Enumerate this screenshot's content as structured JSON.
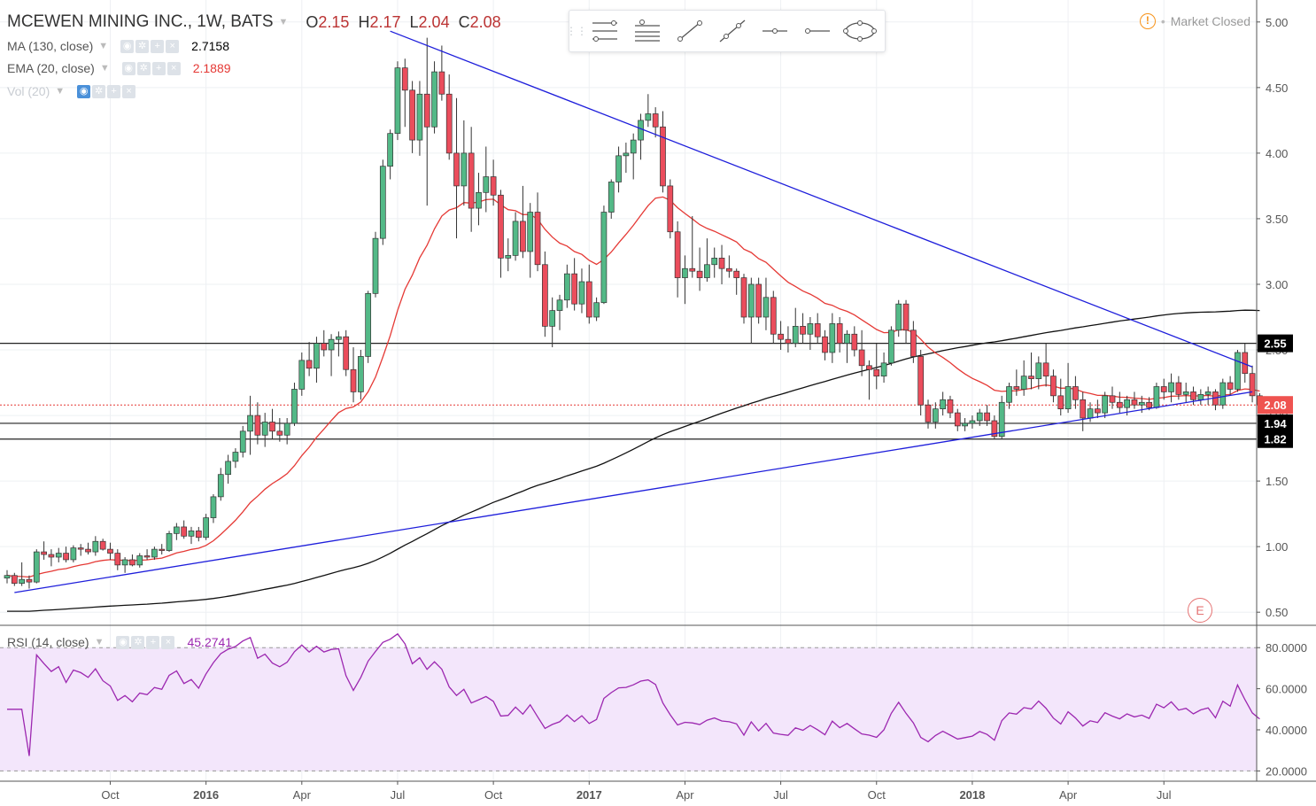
{
  "header": {
    "symbol_title": "MCEWEN MINING INC., 1W, BATS",
    "ohlc": [
      {
        "label": "O",
        "value": "2.15"
      },
      {
        "label": "H",
        "value": "2.17"
      },
      {
        "label": "L",
        "value": "2.04"
      },
      {
        "label": "C",
        "value": "2.08"
      }
    ]
  },
  "indicators": {
    "ma": {
      "label": "MA (130, close)",
      "value": "2.7158",
      "color": "#000000"
    },
    "ema": {
      "label": "EMA (20, close)",
      "value": "2.1889",
      "color": "#e53935"
    },
    "vol": {
      "label": "Vol (20)"
    },
    "rsi": {
      "label": "RSI (14, close)",
      "value": "45.2741",
      "color": "#9c27b0"
    }
  },
  "market_status": "Market Closed",
  "earnings_marker": "E",
  "toolbar": {
    "tools": [
      "parallel-lines-icon",
      "channel-icon",
      "trend-line-icon",
      "ray-line-icon",
      "horizontal-ray-icon",
      "horizontal-line-icon",
      "ellipse-icon"
    ]
  },
  "chart_data": [
    {
      "type": "candlestick",
      "title": "MCEWEN MINING INC., 1W, BATS",
      "ylim": [
        0.4,
        5.1
      ],
      "y_ticks": [
        "5.00",
        "4.50",
        "4.00",
        "3.50",
        "3.00",
        "2.50",
        "2.00",
        "1.50",
        "1.00",
        "0.50"
      ],
      "x_tick_labels": [
        "Oct",
        "2016",
        "Apr",
        "Jul",
        "Oct",
        "2017",
        "Apr",
        "Jul",
        "Oct",
        "2018",
        "Apr",
        "Jul"
      ],
      "x_tick_weeks": [
        14,
        27,
        40,
        53,
        66,
        79,
        92,
        105,
        118,
        131,
        144,
        157
      ],
      "weeks_total": 169,
      "price_labels": [
        {
          "value": 2.55,
          "text": "2.55",
          "style": "black"
        },
        {
          "value": 2.08,
          "text": "2.08",
          "style": "red"
        },
        {
          "value": 1.94,
          "text": "1.94",
          "style": "black"
        },
        {
          "value": 1.82,
          "text": "1.82",
          "style": "black"
        }
      ],
      "horizontal_lines": [
        2.55,
        1.94,
        1.82
      ],
      "last_price_line": 2.08,
      "trend_lines": [
        {
          "from": [
            1,
            0.65
          ],
          "to": [
            169,
            2.18
          ],
          "color": "#1e1edb"
        },
        {
          "from": [
            52,
            4.93
          ],
          "to": [
            169,
            2.37
          ],
          "color": "#1e1edb"
        }
      ],
      "ohlc": [
        [
          0.76,
          0.82,
          0.72,
          0.78
        ],
        [
          0.78,
          0.8,
          0.7,
          0.72
        ],
        [
          0.72,
          0.88,
          0.7,
          0.75
        ],
        [
          0.75,
          0.78,
          0.68,
          0.73
        ],
        [
          0.73,
          0.98,
          0.72,
          0.96
        ],
        [
          0.96,
          1.04,
          0.9,
          0.94
        ],
        [
          0.94,
          0.98,
          0.85,
          0.92
        ],
        [
          0.92,
          0.99,
          0.88,
          0.95
        ],
        [
          0.95,
          1.0,
          0.88,
          0.9
        ],
        [
          0.9,
          1.01,
          0.88,
          0.99
        ],
        [
          0.99,
          1.02,
          0.93,
          0.98
        ],
        [
          0.98,
          1.03,
          0.94,
          0.96
        ],
        [
          0.96,
          1.08,
          0.93,
          1.04
        ],
        [
          1.04,
          1.06,
          0.97,
          0.98
        ],
        [
          0.98,
          1.03,
          0.9,
          0.95
        ],
        [
          0.95,
          0.98,
          0.82,
          0.86
        ],
        [
          0.86,
          0.92,
          0.8,
          0.9
        ],
        [
          0.9,
          0.94,
          0.85,
          0.86
        ],
        [
          0.86,
          0.95,
          0.84,
          0.93
        ],
        [
          0.93,
          0.98,
          0.9,
          0.92
        ],
        [
          0.92,
          1.0,
          0.9,
          0.98
        ],
        [
          0.98,
          1.02,
          0.94,
          0.97
        ],
        [
          0.97,
          1.12,
          0.96,
          1.1
        ],
        [
          1.1,
          1.18,
          1.05,
          1.15
        ],
        [
          1.15,
          1.2,
          1.06,
          1.08
        ],
        [
          1.08,
          1.15,
          1.02,
          1.12
        ],
        [
          1.12,
          1.15,
          1.04,
          1.07
        ],
        [
          1.07,
          1.25,
          1.05,
          1.22
        ],
        [
          1.22,
          1.4,
          1.18,
          1.38
        ],
        [
          1.38,
          1.6,
          1.35,
          1.55
        ],
        [
          1.55,
          1.7,
          1.48,
          1.65
        ],
        [
          1.65,
          1.75,
          1.6,
          1.72
        ],
        [
          1.72,
          1.92,
          1.68,
          1.88
        ],
        [
          1.88,
          2.15,
          1.7,
          2.0
        ],
        [
          2.0,
          2.1,
          1.78,
          1.85
        ],
        [
          1.85,
          2.02,
          1.76,
          1.95
        ],
        [
          1.95,
          2.05,
          1.82,
          1.88
        ],
        [
          1.88,
          1.98,
          1.8,
          1.85
        ],
        [
          1.85,
          1.98,
          1.78,
          1.94
        ],
        [
          1.94,
          2.25,
          1.92,
          2.2
        ],
        [
          2.2,
          2.48,
          2.15,
          2.42
        ],
        [
          2.42,
          2.56,
          2.3,
          2.36
        ],
        [
          2.36,
          2.6,
          2.25,
          2.55
        ],
        [
          2.55,
          2.65,
          2.45,
          2.5
        ],
        [
          2.5,
          2.62,
          2.3,
          2.58
        ],
        [
          2.58,
          2.64,
          2.45,
          2.6
        ],
        [
          2.6,
          2.65,
          2.3,
          2.35
        ],
        [
          2.35,
          2.52,
          2.1,
          2.18
        ],
        [
          2.18,
          2.5,
          2.12,
          2.45
        ],
        [
          2.45,
          2.95,
          2.4,
          2.93
        ],
        [
          2.93,
          3.4,
          2.9,
          3.35
        ],
        [
          3.35,
          3.95,
          3.3,
          3.9
        ],
        [
          3.9,
          4.18,
          3.8,
          4.15
        ],
        [
          4.15,
          4.7,
          4.1,
          4.65
        ],
        [
          4.65,
          4.72,
          4.2,
          4.48
        ],
        [
          4.48,
          4.55,
          4.0,
          4.1
        ],
        [
          4.1,
          4.55,
          3.98,
          4.45
        ],
        [
          4.45,
          4.88,
          3.6,
          4.2
        ],
        [
          4.2,
          4.7,
          4.15,
          4.62
        ],
        [
          4.62,
          4.82,
          4.4,
          4.45
        ],
        [
          4.45,
          4.6,
          3.95,
          4.0
        ],
        [
          4.0,
          4.42,
          3.35,
          3.75
        ],
        [
          3.75,
          4.25,
          3.6,
          4.0
        ],
        [
          4.0,
          4.2,
          3.4,
          3.58
        ],
        [
          3.58,
          3.85,
          3.45,
          3.7
        ],
        [
          3.7,
          4.05,
          3.55,
          3.82
        ],
        [
          3.82,
          3.95,
          3.6,
          3.68
        ],
        [
          3.68,
          3.72,
          3.05,
          3.2
        ],
        [
          3.2,
          3.35,
          3.1,
          3.22
        ],
        [
          3.22,
          3.55,
          3.18,
          3.48
        ],
        [
          3.48,
          3.75,
          3.2,
          3.25
        ],
        [
          3.25,
          3.62,
          3.05,
          3.55
        ],
        [
          3.55,
          3.7,
          3.1,
          3.15
        ],
        [
          3.15,
          3.25,
          2.6,
          2.68
        ],
        [
          2.68,
          2.9,
          2.52,
          2.8
        ],
        [
          2.8,
          2.92,
          2.65,
          2.88
        ],
        [
          2.88,
          3.15,
          2.82,
          3.08
        ],
        [
          3.08,
          3.2,
          2.8,
          2.85
        ],
        [
          2.85,
          3.12,
          2.78,
          3.02
        ],
        [
          3.02,
          3.15,
          2.7,
          2.75
        ],
        [
          2.75,
          2.9,
          2.72,
          2.86
        ],
        [
          2.86,
          3.6,
          2.85,
          3.55
        ],
        [
          3.55,
          3.8,
          3.5,
          3.78
        ],
        [
          3.78,
          4.05,
          3.7,
          3.98
        ],
        [
          3.98,
          4.08,
          3.85,
          4.0
        ],
        [
          4.0,
          4.15,
          3.8,
          4.1
        ],
        [
          4.1,
          4.3,
          3.95,
          4.25
        ],
        [
          4.25,
          4.45,
          4.2,
          4.3
        ],
        [
          4.3,
          4.35,
          4.12,
          4.2
        ],
        [
          4.2,
          4.32,
          3.7,
          3.75
        ],
        [
          3.75,
          3.8,
          3.35,
          3.4
        ],
        [
          3.4,
          3.48,
          2.9,
          3.05
        ],
        [
          3.05,
          3.22,
          2.85,
          3.12
        ],
        [
          3.12,
          3.52,
          3.05,
          3.1
        ],
        [
          3.1,
          3.28,
          2.95,
          3.05
        ],
        [
          3.05,
          3.35,
          3.02,
          3.15
        ],
        [
          3.15,
          3.28,
          3.05,
          3.2
        ],
        [
          3.2,
          3.3,
          3.0,
          3.12
        ],
        [
          3.12,
          3.22,
          3.05,
          3.1
        ],
        [
          3.1,
          3.12,
          2.92,
          3.05
        ],
        [
          3.05,
          3.08,
          2.7,
          2.75
        ],
        [
          2.75,
          3.05,
          2.55,
          3.0
        ],
        [
          3.0,
          3.05,
          2.7,
          2.75
        ],
        [
          2.75,
          3.05,
          2.65,
          2.9
        ],
        [
          2.9,
          2.95,
          2.55,
          2.62
        ],
        [
          2.62,
          2.72,
          2.5,
          2.58
        ],
        [
          2.58,
          2.68,
          2.48,
          2.55
        ],
        [
          2.55,
          2.82,
          2.52,
          2.68
        ],
        [
          2.68,
          2.78,
          2.55,
          2.62
        ],
        [
          2.62,
          2.75,
          2.5,
          2.7
        ],
        [
          2.7,
          2.78,
          2.55,
          2.6
        ],
        [
          2.6,
          2.65,
          2.42,
          2.48
        ],
        [
          2.48,
          2.78,
          2.4,
          2.7
        ],
        [
          2.7,
          2.75,
          2.48,
          2.55
        ],
        [
          2.55,
          2.65,
          2.4,
          2.62
        ],
        [
          2.62,
          2.68,
          2.45,
          2.5
        ],
        [
          2.5,
          2.65,
          2.3,
          2.38
        ],
        [
          2.38,
          2.42,
          2.12,
          2.35
        ],
        [
          2.35,
          2.55,
          2.2,
          2.3
        ],
        [
          2.3,
          2.48,
          2.25,
          2.4
        ],
        [
          2.4,
          2.68,
          2.38,
          2.65
        ],
        [
          2.65,
          2.88,
          2.6,
          2.85
        ],
        [
          2.85,
          2.88,
          2.55,
          2.65
        ],
        [
          2.65,
          2.72,
          2.4,
          2.45
        ],
        [
          2.45,
          2.5,
          2.0,
          2.08
        ],
        [
          2.08,
          2.12,
          1.9,
          1.95
        ],
        [
          1.95,
          2.1,
          1.9,
          2.05
        ],
        [
          2.05,
          2.18,
          2.0,
          2.12
        ],
        [
          2.12,
          2.15,
          1.98,
          2.02
        ],
        [
          2.02,
          2.05,
          1.88,
          1.92
        ],
        [
          1.92,
          1.98,
          1.88,
          1.94
        ],
        [
          1.94,
          2.0,
          1.9,
          1.96
        ],
        [
          1.96,
          2.05,
          1.92,
          2.02
        ],
        [
          2.02,
          2.08,
          1.92,
          1.96
        ],
        [
          1.96,
          2.0,
          1.82,
          1.84
        ],
        [
          1.84,
          2.15,
          1.82,
          2.1
        ],
        [
          2.1,
          2.25,
          2.05,
          2.22
        ],
        [
          2.22,
          2.35,
          2.15,
          2.2
        ],
        [
          2.2,
          2.42,
          2.15,
          2.3
        ],
        [
          2.3,
          2.48,
          2.2,
          2.28
        ],
        [
          2.28,
          2.45,
          2.2,
          2.4
        ],
        [
          2.4,
          2.55,
          2.22,
          2.3
        ],
        [
          2.3,
          2.35,
          2.1,
          2.15
        ],
        [
          2.15,
          2.28,
          2.0,
          2.05
        ],
        [
          2.05,
          2.4,
          2.02,
          2.22
        ],
        [
          2.22,
          2.3,
          2.05,
          2.12
        ],
        [
          2.12,
          2.18,
          1.88,
          1.98
        ],
        [
          1.98,
          2.1,
          1.95,
          2.05
        ],
        [
          2.05,
          2.12,
          1.98,
          2.02
        ],
        [
          2.02,
          2.18,
          1.98,
          2.15
        ],
        [
          2.15,
          2.22,
          2.05,
          2.1
        ],
        [
          2.1,
          2.18,
          2.02,
          2.06
        ],
        [
          2.06,
          2.15,
          2.0,
          2.12
        ],
        [
          2.12,
          2.18,
          2.05,
          2.08
        ],
        [
          2.08,
          2.15,
          2.02,
          2.1
        ],
        [
          2.1,
          2.14,
          2.04,
          2.06
        ],
        [
          2.06,
          2.25,
          2.05,
          2.22
        ],
        [
          2.22,
          2.28,
          2.12,
          2.18
        ],
        [
          2.18,
          2.32,
          2.1,
          2.25
        ],
        [
          2.25,
          2.3,
          2.12,
          2.16
        ],
        [
          2.16,
          2.25,
          2.1,
          2.18
        ],
        [
          2.18,
          2.22,
          2.08,
          2.12
        ],
        [
          2.12,
          2.2,
          2.08,
          2.16
        ],
        [
          2.16,
          2.22,
          2.08,
          2.18
        ],
        [
          2.18,
          2.2,
          2.04,
          2.08
        ],
        [
          2.08,
          2.28,
          2.05,
          2.25
        ],
        [
          2.25,
          2.3,
          2.15,
          2.2
        ],
        [
          2.2,
          2.5,
          2.18,
          2.48
        ],
        [
          2.48,
          2.55,
          2.25,
          2.32
        ],
        [
          2.32,
          2.38,
          2.1,
          2.15
        ],
        [
          2.15,
          2.17,
          2.04,
          2.08
        ]
      ]
    },
    {
      "type": "line",
      "title": "RSI (14, close)",
      "ylim": [
        15,
        90
      ],
      "y_ticks": [
        "80.0000",
        "60.0000",
        "40.0000",
        "20.0000"
      ],
      "bands": [
        80,
        20
      ],
      "last_value": 45.2741
    }
  ]
}
